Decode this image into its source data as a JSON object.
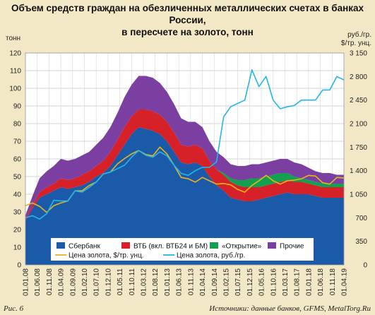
{
  "header": {
    "title_line1": "Объем средств граждан на обезличенных металлических счетах в банках России,",
    "title_line2": "в пересчете на золото, тонн"
  },
  "footer": {
    "figure_label": "Рис. 6",
    "source": "Источники: данные банков, GFMS, MetalTorg.Ru"
  },
  "chart_data": {
    "type": "area",
    "title": "Объем средств граждан на обезличенных металлических счетах в банках России, в пересчете на золото, тонн",
    "y_left_unit": "тонн",
    "y_right_unit_line1": "руб./гр.",
    "y_right_unit_line2": "$/тр. унц.",
    "y_left_range": [
      0,
      120
    ],
    "y_left_ticks": [
      "0",
      "10",
      "20",
      "30",
      "40",
      "50",
      "60",
      "70",
      "80",
      "90",
      "100",
      "110",
      "120"
    ],
    "y_right_range": [
      0,
      3150
    ],
    "y_right_ticks": [
      "0",
      "350",
      "700",
      "1 050",
      "1 400",
      "1 750",
      "2 100",
      "2 450",
      "2 800",
      "3 150"
    ],
    "x_range": [
      2008.0,
      2019.25
    ],
    "x_tick_labels": [
      "01.01.08",
      "01.06.08",
      "01.11.08",
      "01.04.09",
      "01.09.09",
      "01.02.10",
      "01.07.10",
      "01.12.10",
      "01.05.11",
      "01.10.11",
      "01.03.12",
      "01.08.12",
      "01.01.13",
      "01.06.13",
      "01.11.13",
      "01.04.14",
      "01.09.14",
      "01.02.15",
      "01.07.15",
      "01.12.15",
      "01.05.16",
      "01.10.16",
      "01.03.17",
      "01.08.17",
      "01.01.18",
      "01.06.18",
      "01.11.18",
      "01.04.19"
    ],
    "grid": true,
    "legend_position": "bottom-inside",
    "x": [
      2008.0,
      2008.25,
      2008.5,
      2008.75,
      2009.0,
      2009.25,
      2009.5,
      2009.75,
      2010.0,
      2010.25,
      2010.5,
      2010.75,
      2011.0,
      2011.25,
      2011.5,
      2011.75,
      2012.0,
      2012.25,
      2012.5,
      2012.75,
      2013.0,
      2013.25,
      2013.5,
      2013.75,
      2014.0,
      2014.25,
      2014.5,
      2014.75,
      2015.0,
      2015.25,
      2015.5,
      2015.75,
      2016.0,
      2016.25,
      2016.5,
      2016.75,
      2017.0,
      2017.25,
      2017.5,
      2017.75,
      2018.0,
      2018.25,
      2018.5,
      2018.75,
      2019.0,
      2019.25
    ],
    "series": [
      {
        "name": "Сбербанк",
        "kind": "stacked-area",
        "axis": "left",
        "color": "#1a5aa8",
        "values": [
          25,
          32,
          38,
          40,
          42,
          44,
          43,
          44,
          45,
          47,
          50,
          52,
          56,
          62,
          68,
          74,
          78,
          77,
          76,
          74,
          70,
          64,
          58,
          57,
          58,
          56,
          50,
          45,
          42,
          38,
          37,
          36,
          36,
          37,
          38,
          39,
          40,
          41,
          40,
          40,
          40,
          39,
          38,
          38,
          38,
          38
        ]
      },
      {
        "name": "ВТБ (вкл. ВТБ24 и БМ)",
        "kind": "stacked-area",
        "axis": "left",
        "color": "#d62128",
        "values": [
          1,
          2,
          3,
          4,
          4,
          5,
          5,
          5,
          6,
          6,
          6,
          7,
          8,
          9,
          10,
          10,
          10,
          11,
          11,
          11,
          11,
          11,
          10,
          10,
          10,
          10,
          9,
          9,
          9,
          9,
          8,
          8,
          8,
          7,
          7,
          7,
          7,
          7,
          7,
          7,
          6,
          6,
          6,
          6,
          6,
          6
        ]
      },
      {
        "name": "«Открытие»",
        "kind": "stacked-area",
        "axis": "left",
        "color": "#11a150",
        "values": [
          0,
          0,
          0,
          0,
          0,
          0,
          0,
          0,
          0,
          0,
          0,
          0,
          0,
          0,
          0,
          0,
          0,
          0,
          0,
          0,
          0,
          0,
          0,
          0,
          0,
          0,
          0,
          0,
          1,
          2,
          3,
          4,
          5,
          5,
          5,
          5,
          5,
          4,
          3,
          2,
          2,
          2,
          2,
          2,
          2,
          2
        ]
      },
      {
        "name": "Прочие",
        "kind": "stacked-area",
        "axis": "left",
        "color": "#7a3fa0",
        "values": [
          2,
          5,
          8,
          9,
          10,
          11,
          11,
          11,
          11,
          11,
          12,
          13,
          14,
          15,
          17,
          18,
          19,
          19,
          19,
          18,
          17,
          16,
          15,
          14,
          13,
          12,
          11,
          10,
          9,
          8,
          8,
          8,
          8,
          8,
          8,
          8,
          8,
          8,
          8,
          8,
          7,
          6,
          6,
          6,
          5,
          5
        ]
      },
      {
        "name": "Цена золота, $/тр. унц.",
        "kind": "line",
        "axis": "right",
        "color": "#e8b51a",
        "values": [
          880,
          920,
          870,
          780,
          880,
          920,
          950,
          1100,
          1100,
          1180,
          1230,
          1350,
          1380,
          1500,
          1580,
          1650,
          1700,
          1640,
          1620,
          1750,
          1650,
          1480,
          1300,
          1280,
          1230,
          1300,
          1250,
          1200,
          1210,
          1190,
          1120,
          1080,
          1180,
          1250,
          1330,
          1250,
          1200,
          1250,
          1260,
          1280,
          1330,
          1320,
          1220,
          1200,
          1300,
          1290
        ]
      },
      {
        "name": "Цена золота, руб./гр.",
        "kind": "line",
        "axis": "right",
        "color": "#23b6e8",
        "values": [
          700,
          730,
          680,
          760,
          960,
          950,
          950,
          1100,
          1080,
          1150,
          1230,
          1350,
          1380,
          1430,
          1480,
          1600,
          1700,
          1630,
          1600,
          1680,
          1620,
          1480,
          1360,
          1330,
          1400,
          1450,
          1450,
          1530,
          2200,
          2350,
          2400,
          2450,
          2900,
          2650,
          2800,
          2450,
          2320,
          2350,
          2370,
          2450,
          2450,
          2450,
          2600,
          2600,
          2800,
          2750
        ]
      }
    ]
  }
}
